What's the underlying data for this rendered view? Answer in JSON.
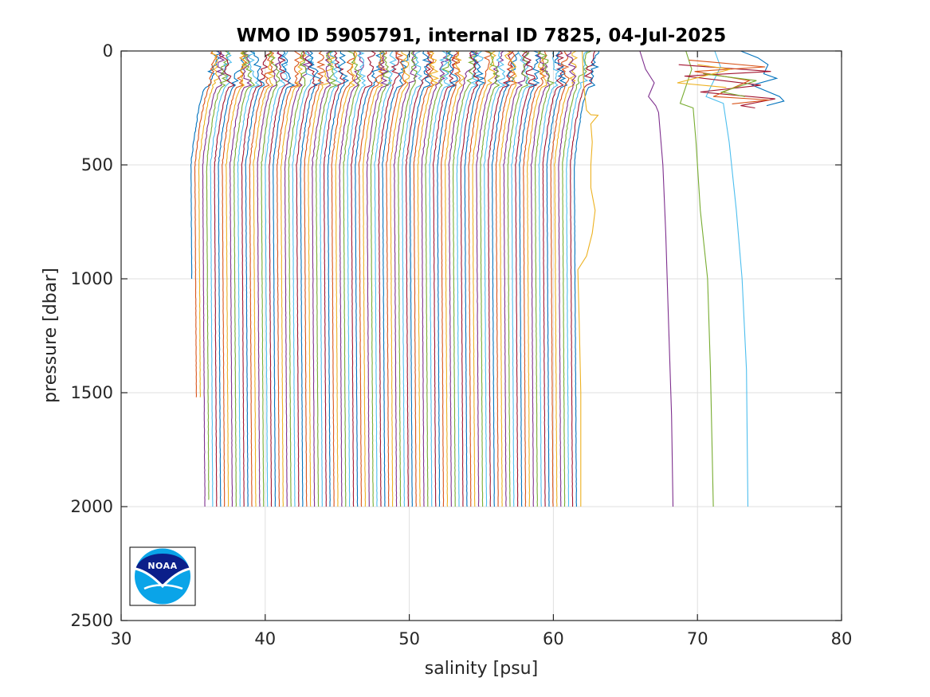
{
  "chart_data": {
    "type": "line",
    "title": "WMO ID 5905791, internal ID 7825, 04-Jul-2025",
    "xlabel": "salinity [psu]",
    "ylabel": "pressure [dbar]",
    "xlim": [
      30,
      80
    ],
    "ylim": [
      0,
      2500
    ],
    "y_reversed": true,
    "grid": true,
    "x_ticks": [
      30,
      40,
      50,
      60,
      70,
      80
    ],
    "y_ticks": [
      0,
      500,
      1000,
      1500,
      2000,
      2500
    ],
    "x_tick_labels": [
      "30",
      "40",
      "50",
      "60",
      "70",
      "80"
    ],
    "y_tick_labels": [
      "0",
      "500",
      "1000",
      "1500",
      "2000",
      "2500"
    ],
    "palette": [
      "#0072BD",
      "#D95319",
      "#EDB120",
      "#7E2F8E",
      "#77AC30",
      "#4DBEEE",
      "#A2142F"
    ],
    "profile_family": {
      "count": 99,
      "first_deep_salinity": 35.0,
      "last_deep_salinity": 61.6,
      "max_pressure": 2000,
      "short_profiles": [
        {
          "index": 0,
          "max_pressure": 1000
        },
        {
          "index": 1,
          "max_pressure": 1520
        },
        {
          "index": 2,
          "max_pressure": 1520
        },
        {
          "index": 4,
          "max_pressure": 1970
        }
      ]
    },
    "outlier_series": [
      {
        "color": "#EDB120",
        "points": [
          [
            62.0,
            0
          ],
          [
            62.1,
            150
          ],
          [
            62.3,
            260
          ],
          [
            62.6,
            280
          ],
          [
            63.1,
            282
          ],
          [
            62.6,
            320
          ],
          [
            62.7,
            400
          ],
          [
            62.6,
            500
          ],
          [
            62.6,
            600
          ],
          [
            62.9,
            700
          ],
          [
            62.7,
            800
          ],
          [
            62.3,
            900
          ],
          [
            61.7,
            960
          ],
          [
            61.8,
            1200
          ],
          [
            61.9,
            1500
          ],
          [
            61.9,
            2000
          ]
        ]
      },
      {
        "color": "#7E2F8E",
        "points": [
          [
            66.0,
            0
          ],
          [
            66.4,
            80
          ],
          [
            67.0,
            140
          ],
          [
            66.6,
            200
          ],
          [
            67.1,
            240
          ],
          [
            67.3,
            270
          ],
          [
            67.6,
            500
          ],
          [
            67.8,
            800
          ],
          [
            68.0,
            1200
          ],
          [
            68.2,
            1600
          ],
          [
            68.3,
            2000
          ]
        ]
      },
      {
        "color": "#77AC30",
        "points": [
          [
            69.2,
            0
          ],
          [
            69.6,
            80
          ],
          [
            68.8,
            230
          ],
          [
            69.7,
            250
          ],
          [
            69.9,
            400
          ],
          [
            70.2,
            700
          ],
          [
            70.7,
            1000
          ],
          [
            70.9,
            1400
          ],
          [
            71.0,
            1700
          ],
          [
            71.1,
            2000
          ]
        ]
      },
      {
        "color": "#4DBEEE",
        "points": [
          [
            71.2,
            0
          ],
          [
            71.6,
            70
          ],
          [
            70.6,
            200
          ],
          [
            71.8,
            230
          ],
          [
            72.2,
            400
          ],
          [
            72.7,
            700
          ],
          [
            73.1,
            1000
          ],
          [
            73.4,
            1400
          ],
          [
            73.5,
            2000
          ]
        ]
      },
      {
        "color": "#0072BD",
        "points": [
          [
            73.0,
            0
          ],
          [
            74.2,
            30
          ],
          [
            74.9,
            60
          ],
          [
            74.6,
            100
          ],
          [
            75.5,
            120
          ],
          [
            73.8,
            150
          ],
          [
            75.7,
            200
          ],
          [
            76.0,
            220
          ],
          [
            74.8,
            240
          ]
        ]
      },
      {
        "color": "#A2142F",
        "points": [
          [
            68.7,
            60
          ],
          [
            75.1,
            90
          ],
          [
            69.1,
            110
          ],
          [
            74.4,
            150
          ],
          [
            70.2,
            180
          ],
          [
            75.4,
            210
          ],
          [
            73.0,
            240
          ],
          [
            74.0,
            250
          ]
        ]
      },
      {
        "color": "#D95319",
        "points": [
          [
            69.4,
            40
          ],
          [
            74.7,
            70
          ],
          [
            69.8,
            90
          ],
          [
            73.6,
            130
          ],
          [
            71.1,
            200
          ],
          [
            75.0,
            215
          ],
          [
            72.4,
            232
          ]
        ]
      },
      {
        "color": "#EDB120",
        "points": [
          [
            70.0,
            60
          ],
          [
            72.3,
            80
          ],
          [
            68.6,
            140
          ],
          [
            72.0,
            160
          ]
        ]
      },
      {
        "color": "#77AC30",
        "points": [
          [
            70.4,
            100
          ],
          [
            74.1,
            130
          ],
          [
            71.7,
            180
          ],
          [
            73.3,
            200
          ]
        ]
      }
    ]
  },
  "logo": {
    "icon": "noaa-logo",
    "text": "NOAA",
    "colors": {
      "dark": "#0b1f8a",
      "light": "#0aa4e8"
    }
  }
}
